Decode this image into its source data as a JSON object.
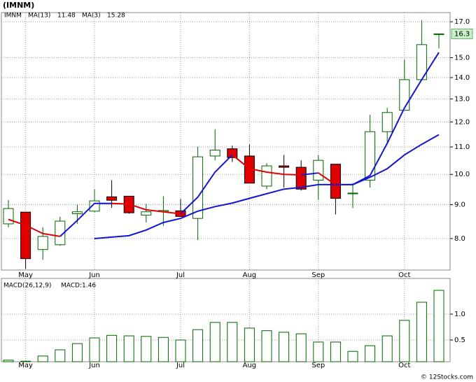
{
  "title": "(IMNM)",
  "footer": "© 12Stocks.com",
  "chart_data": [
    {
      "type": "candlestick",
      "symbol": "IMNM",
      "categories": [
        null,
        "May",
        null,
        null,
        null,
        "Jun",
        null,
        null,
        null,
        null,
        "Jul",
        null,
        null,
        null,
        "Aug",
        null,
        null,
        null,
        "Sep",
        null,
        null,
        null,
        null,
        "Oct",
        null,
        null
      ],
      "open": [
        8.42,
        8.77,
        7.7,
        7.83,
        8.72,
        8.8,
        9.25,
        9.27,
        8.68,
        8.79,
        8.81,
        8.58,
        10.66,
        10.93,
        10.66,
        9.6,
        10.3,
        10.25,
        9.8,
        10.36,
        9.35,
        9.8,
        11.6,
        12.5,
        13.9,
        16.3
      ],
      "high": [
        9.15,
        8.77,
        8.32,
        8.63,
        9.0,
        9.5,
        9.8,
        9.27,
        9.03,
        9.27,
        9.18,
        11.0,
        11.7,
        11.05,
        11.1,
        10.4,
        10.7,
        10.5,
        10.7,
        10.36,
        9.7,
        12.3,
        12.6,
        14.9,
        17.1,
        16.3
      ],
      "low": [
        8.32,
        7.2,
        7.43,
        7.8,
        8.42,
        8.77,
        8.9,
        8.72,
        8.46,
        8.36,
        8.64,
        7.96,
        10.5,
        10.44,
        9.7,
        9.5,
        9.55,
        9.45,
        9.15,
        8.7,
        8.9,
        9.55,
        11.1,
        12.5,
        13.9,
        15.5
      ],
      "close": [
        8.88,
        7.46,
        8.06,
        8.5,
        8.78,
        9.12,
        9.14,
        8.75,
        8.78,
        8.82,
        8.64,
        10.63,
        10.88,
        10.6,
        9.7,
        10.3,
        10.25,
        9.5,
        10.5,
        9.2,
        9.37,
        11.6,
        12.4,
        13.9,
        15.7,
        16.3
      ],
      "up_color": "#006400",
      "down_color": "#e00000",
      "symbol_color": "#008000",
      "series": [
        {
          "name": "MA(13)",
          "color": "#1414d2",
          "legend_value": 11.48,
          "values": [
            null,
            null,
            null,
            null,
            null,
            8.0,
            8.04,
            8.08,
            8.24,
            8.46,
            8.58,
            8.8,
            8.94,
            9.05,
            9.2,
            9.35,
            9.5,
            9.56,
            9.65,
            9.65,
            9.65,
            9.9,
            10.2,
            10.7,
            11.1,
            11.48
          ]
        },
        {
          "name": "MA(3)",
          "color": "#1414d2",
          "down_color": "#e00000",
          "legend_value": 15.28,
          "values": [
            8.55,
            8.38,
            8.14,
            8.06,
            8.52,
            9.04,
            9.04,
            9.02,
            8.84,
            8.78,
            8.72,
            9.24,
            10.08,
            10.7,
            10.2,
            10.08,
            10.0,
            9.98,
            10.05,
            9.65,
            9.65,
            9.96,
            11.14,
            12.6,
            13.9,
            15.28
          ]
        }
      ],
      "last_price": 16.3,
      "last_price_color": "#c8f0c8",
      "log_scale": true,
      "grid": true,
      "ylim": [
        7.17,
        17.55
      ],
      "yticks": [
        {
          "value": 17,
          "label": "17.0"
        },
        {
          "value": 15,
          "label": "15.0"
        },
        {
          "value": 14,
          "label": "14.0"
        },
        {
          "value": 13,
          "label": "13.0"
        },
        {
          "value": 12,
          "label": "12.0"
        },
        {
          "value": 11,
          "label": "11.0"
        },
        {
          "value": 10,
          "label": "10.0"
        },
        {
          "value": 9,
          "label": "9.0"
        },
        {
          "value": 8,
          "label": "8.0"
        }
      ]
    },
    {
      "type": "bar",
      "title": "MACD(26,12,9)",
      "categories": [
        null,
        "May",
        null,
        null,
        null,
        "Jun",
        null,
        null,
        null,
        null,
        "Jul",
        null,
        null,
        null,
        "Aug",
        null,
        null,
        null,
        "Sep",
        null,
        null,
        null,
        null,
        "Oct",
        null,
        null
      ],
      "series": [
        {
          "name": "MACD:1.46",
          "color": "#006400",
          "legend_color": "#1414d2",
          "values": [
            0.11,
            0.09,
            0.19,
            0.31,
            0.43,
            0.54,
            0.59,
            0.58,
            0.57,
            0.55,
            0.5,
            0.7,
            0.84,
            0.84,
            0.73,
            0.68,
            0.65,
            0.62,
            0.46,
            0.46,
            0.28,
            0.39,
            0.58,
            0.88,
            1.23,
            1.46
          ]
        }
      ],
      "grid": true,
      "ylim": [
        0.08,
        1.69
      ],
      "yticks": [
        {
          "value": 1,
          "label": "1.0"
        },
        0.5
      ]
    }
  ]
}
